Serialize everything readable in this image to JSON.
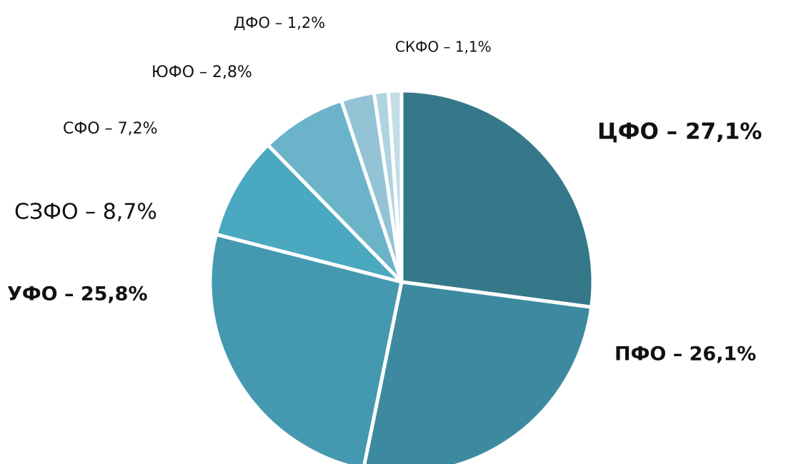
{
  "chart_data": {
    "type": "pie",
    "values": [
      27.1,
      26.1,
      25.8,
      8.7,
      7.2,
      2.8,
      1.2,
      1.1
    ],
    "value_labels": [
      "ЦФО – 27,1%",
      "ПФО – 26,1%",
      "УФО – 25,8%",
      "СЗФО – 8,7%",
      "СФО – 7,2%",
      "ЮФО – 2,8%",
      "ДФО – 1,2%",
      "СКФО – 1,1%"
    ],
    "colors": [
      "#35788a",
      "#3d8aa0",
      "#4499b0",
      "#4aa8c0",
      "#6ab3c9",
      "#93c3d5",
      "#afd3e0",
      "#c3dde7"
    ]
  }
}
